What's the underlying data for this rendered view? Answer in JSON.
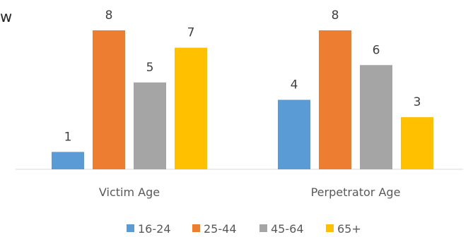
{
  "partial_title": "w",
  "chart_data": {
    "type": "bar",
    "categories": [
      "Victim Age",
      "Perpetrator Age"
    ],
    "series": [
      {
        "name": "16-24",
        "values": [
          1,
          4
        ],
        "color": "#5B9BD5"
      },
      {
        "name": "25-44",
        "values": [
          8,
          8
        ],
        "color": "#ED7D31"
      },
      {
        "name": "45-64",
        "values": [
          5,
          6
        ],
        "color": "#A5A5A5"
      },
      {
        "name": "65+",
        "values": [
          7,
          3
        ],
        "color": "#FFC000"
      }
    ],
    "title": "",
    "xlabel": "",
    "ylabel": "",
    "ylim": [
      0,
      8
    ],
    "grid": false,
    "data_labels": true,
    "legend_position": "bottom"
  }
}
